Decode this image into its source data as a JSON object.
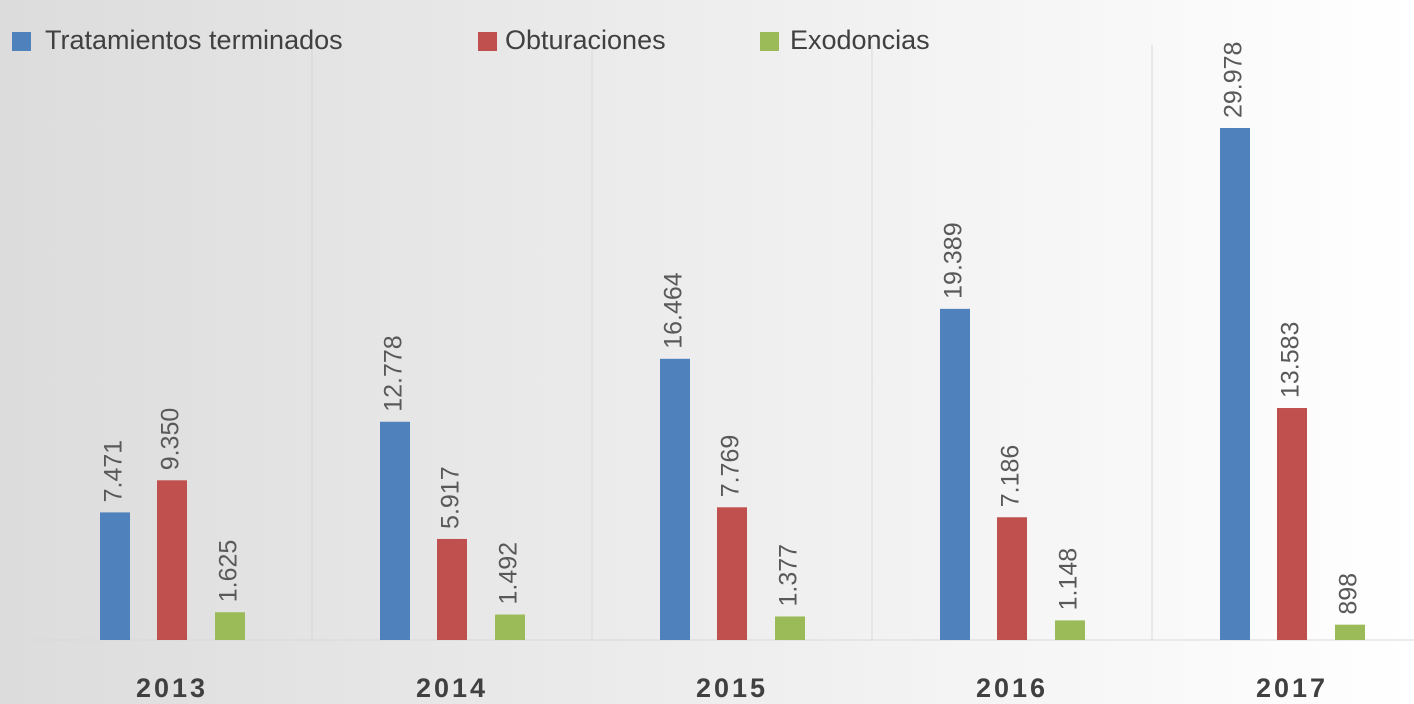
{
  "chart_data": {
    "type": "bar",
    "categories": [
      "2013",
      "2014",
      "2015",
      "2016",
      "2017"
    ],
    "series": [
      {
        "name": "Tratamientos terminados",
        "color": "#4f81bd",
        "values": [
          7471,
          12778,
          16464,
          19389,
          29978
        ],
        "value_labels": [
          "7.471",
          "12.778",
          "16.464",
          "19.389",
          "29.978"
        ]
      },
      {
        "name": "Obturaciones",
        "color": "#c0504d",
        "values": [
          9350,
          5917,
          7769,
          7186,
          13583
        ],
        "value_labels": [
          "9.350",
          "5.917",
          "7.769",
          "7.186",
          "13.583"
        ]
      },
      {
        "name": "Exodoncias",
        "color": "#9bbb59",
        "values": [
          1625,
          1492,
          1377,
          1148,
          898
        ],
        "value_labels": [
          "1.625",
          "1.492",
          "1.377",
          "1.148",
          "898"
        ]
      }
    ]
  }
}
